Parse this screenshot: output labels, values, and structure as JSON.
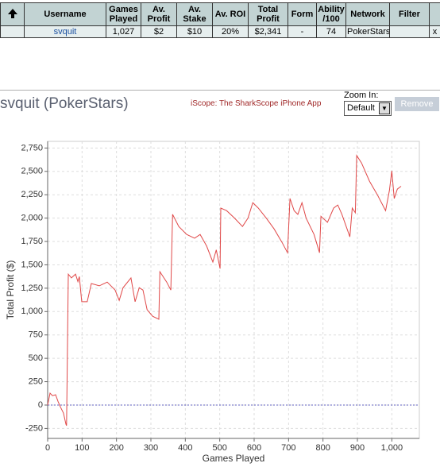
{
  "table": {
    "header": [
      "Username",
      "Games Played",
      "Av. Profit",
      "Av. Stake",
      "Av. ROI",
      "Total Profit",
      "Form",
      "Ability /100",
      "Network",
      "Filter"
    ],
    "rows": [
      {
        "cells": [
          "svquit",
          "1,027",
          "$2",
          "$10",
          "20%",
          "$2,341",
          "-",
          "74",
          "PokerStars"
        ],
        "remove": "x"
      }
    ]
  },
  "controls": {
    "app_link": "iScope: The SharkScope iPhone App",
    "zoom_label": "Zoom In:",
    "zoom_value": "Default",
    "remove_button": "Remove"
  },
  "chart_data": {
    "type": "line",
    "title": "svquit (PokerStars)",
    "x_label": "Games Played",
    "y_label": "Total Profit ($)",
    "x": [
      0,
      7,
      14,
      23,
      30,
      37,
      46,
      53,
      55,
      60,
      69,
      81,
      88,
      92,
      99,
      115,
      127,
      150,
      173,
      196,
      208,
      219,
      242,
      254,
      266,
      277,
      289,
      305,
      323,
      326,
      346,
      358,
      363,
      381,
      404,
      427,
      443,
      462,
      480,
      490,
      501,
      503,
      520,
      543,
      566,
      582,
      596,
      612,
      635,
      658,
      681,
      697,
      704,
      716,
      727,
      739,
      751,
      774,
      790,
      794,
      813,
      831,
      843,
      855,
      878,
      885,
      894,
      898,
      912,
      935,
      958,
      982,
      993,
      1000,
      1007,
      1016,
      1027
    ],
    "values": [
      0,
      127,
      100,
      110,
      40,
      -20,
      -85,
      -205,
      -220,
      1400,
      1360,
      1400,
      1320,
      1375,
      1105,
      1105,
      1300,
      1275,
      1315,
      1230,
      1120,
      1255,
      1360,
      1105,
      1255,
      1230,
      1020,
      950,
      918,
      1427,
      1315,
      1230,
      2040,
      1910,
      1825,
      1785,
      1825,
      1700,
      1530,
      1660,
      1460,
      2107,
      2080,
      2000,
      1910,
      2000,
      2165,
      2107,
      2000,
      1885,
      1740,
      1630,
      2210,
      2080,
      2040,
      2165,
      2000,
      1825,
      1630,
      2020,
      1955,
      2107,
      2140,
      2040,
      1800,
      2107,
      2057,
      2670,
      2590,
      2395,
      2250,
      2080,
      2295,
      2505,
      2210,
      2310,
      2341
    ],
    "color": "#e04848",
    "xlim": [
      0,
      1080
    ],
    "ylim": [
      -357,
      2821
    ],
    "xticks": [
      0,
      100,
      200,
      300,
      400,
      500,
      600,
      700,
      800,
      900,
      {
        "value": 1000,
        "label": "1,000"
      }
    ],
    "yticks": [
      -250,
      0,
      250,
      500,
      750,
      {
        "value": 1000,
        "label": "1,000"
      },
      {
        "value": 1250,
        "label": "1,250"
      },
      {
        "value": 1500,
        "label": "1,500"
      },
      {
        "value": 1750,
        "label": "1,750"
      },
      {
        "value": 2000,
        "label": "2,000"
      },
      {
        "value": 2250,
        "label": "2,250"
      },
      {
        "value": 2500,
        "label": "2,500"
      },
      {
        "value": 2750,
        "label": "2,750"
      }
    ],
    "grid": true,
    "zero_line": true,
    "zero_line_color": "#6060c0"
  }
}
